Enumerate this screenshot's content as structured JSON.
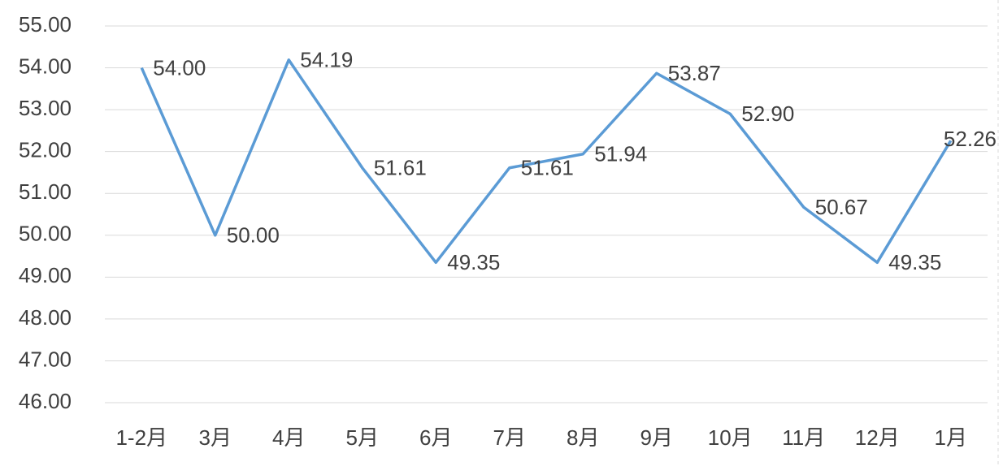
{
  "chart_data": {
    "type": "line",
    "categories": [
      "1-2月",
      "3月",
      "4月",
      "5月",
      "6月",
      "7月",
      "8月",
      "9月",
      "10月",
      "11月",
      "12月",
      "1月"
    ],
    "values": [
      54.0,
      50.0,
      54.19,
      51.61,
      49.35,
      51.61,
      51.94,
      53.87,
      52.9,
      50.67,
      49.35,
      52.26
    ],
    "value_labels": [
      "54.00",
      "50.00",
      "54.19",
      "51.61",
      "49.35",
      "51.61",
      "51.94",
      "53.87",
      "52.90",
      "50.67",
      "49.35",
      "52.26"
    ],
    "color": "#5b9bd5",
    "ylim": [
      46,
      55
    ],
    "yticks": [
      {
        "value": 46,
        "label": "46.00"
      },
      {
        "value": 47,
        "label": "47.00"
      },
      {
        "value": 48,
        "label": "48.00"
      },
      {
        "value": 49,
        "label": "49.00"
      },
      {
        "value": 50,
        "label": "50.00"
      },
      {
        "value": 51,
        "label": "51.00"
      },
      {
        "value": 52,
        "label": "52.00"
      },
      {
        "value": 53,
        "label": "53.00"
      },
      {
        "value": 54,
        "label": "54.00"
      },
      {
        "value": 55,
        "label": "55.00"
      }
    ],
    "grid": true
  }
}
